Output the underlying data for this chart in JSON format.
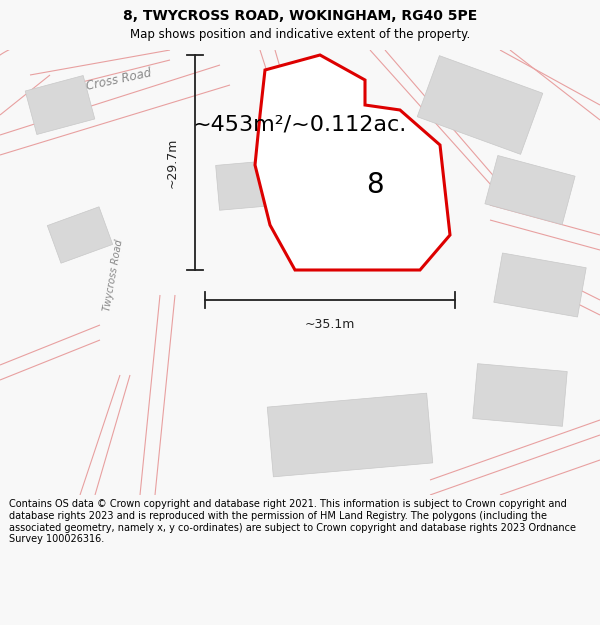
{
  "title_line1": "8, TWYCROSS ROAD, WOKINGHAM, RG40 5PE",
  "title_line2": "Map shows position and indicative extent of the property.",
  "area_label": "~453m²/~0.112ac.",
  "plot_number": "8",
  "dim_width": "~35.1m",
  "dim_height": "~29.7m",
  "road_label": "Twycross Road",
  "road_label2": "Cross Road",
  "footer_text": "Contains OS data © Crown copyright and database right 2021. This information is subject to Crown copyright and database rights 2023 and is reproduced with the permission of HM Land Registry. The polygons (including the associated geometry, namely x, y co-ordinates) are subject to Crown copyright and database rights 2023 Ordnance Survey 100026316.",
  "bg_color": "#f8f8f8",
  "map_bg": "#f8f8f8",
  "plot_fill": "#ffffff",
  "plot_edge": "#dd0000",
  "road_line_color": "#e8a0a0",
  "road_fill_color": "#ffffff",
  "building_fill": "#d8d8d8",
  "building_edge": "#c8c8c8",
  "dim_color": "#222222",
  "title_fontsize": 10,
  "subtitle_fontsize": 8.5,
  "area_fontsize": 16,
  "plot_num_fontsize": 20,
  "road_label_fontsize": 7,
  "dim_fontsize": 9,
  "footer_fontsize": 7.0
}
